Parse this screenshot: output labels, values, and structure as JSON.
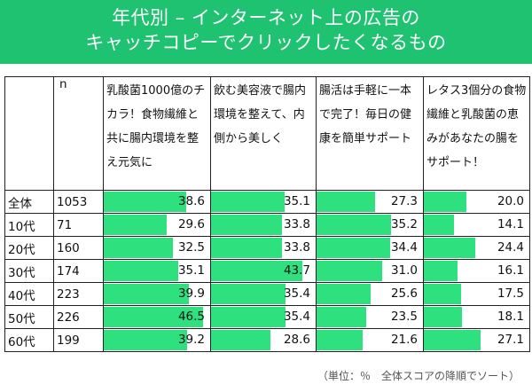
{
  "title": {
    "line1": "年代別 – インターネット上の広告の",
    "line2": "キャッチコピーでクリックしたくなるもの"
  },
  "colors": {
    "header_bg": "#1ec270",
    "bar": "#2ee07e"
  },
  "n_label": "n",
  "footnote": "（単位：％　全体スコアの降順でソート）",
  "chart_data": {
    "type": "table",
    "title": "年代別 – インターネット上の広告のキャッチコピーでクリックしたくなるもの",
    "unit": "%",
    "bar_max": 50,
    "columns": [
      "乳酸菌1000億のチカラ！食物繊維と共に腸内環境を整え元気に",
      "飲む美容液で腸内環境を整えて、内側から美しく",
      "腸活は手軽に一本で完了！毎日の健康を簡単サポート",
      "レタス3個分の食物繊維と乳酸菌の恵みがあなたの腸をサポート！"
    ],
    "rows": [
      {
        "label": "全体",
        "n": "1053",
        "values": [
          "38.6",
          "35.1",
          "27.3",
          "20.0"
        ]
      },
      {
        "label": "10代",
        "n": "71",
        "values": [
          "29.6",
          "33.8",
          "35.2",
          "14.1"
        ]
      },
      {
        "label": "20代",
        "n": "160",
        "values": [
          "32.5",
          "33.8",
          "34.4",
          "24.4"
        ]
      },
      {
        "label": "30代",
        "n": "174",
        "values": [
          "35.1",
          "43.7",
          "31.0",
          "16.1"
        ]
      },
      {
        "label": "40代",
        "n": "223",
        "values": [
          "39.9",
          "35.4",
          "25.6",
          "17.5"
        ]
      },
      {
        "label": "50代",
        "n": "226",
        "values": [
          "46.5",
          "35.4",
          "23.5",
          "18.1"
        ]
      },
      {
        "label": "60代",
        "n": "199",
        "values": [
          "39.2",
          "28.6",
          "21.6",
          "27.1"
        ]
      }
    ]
  }
}
